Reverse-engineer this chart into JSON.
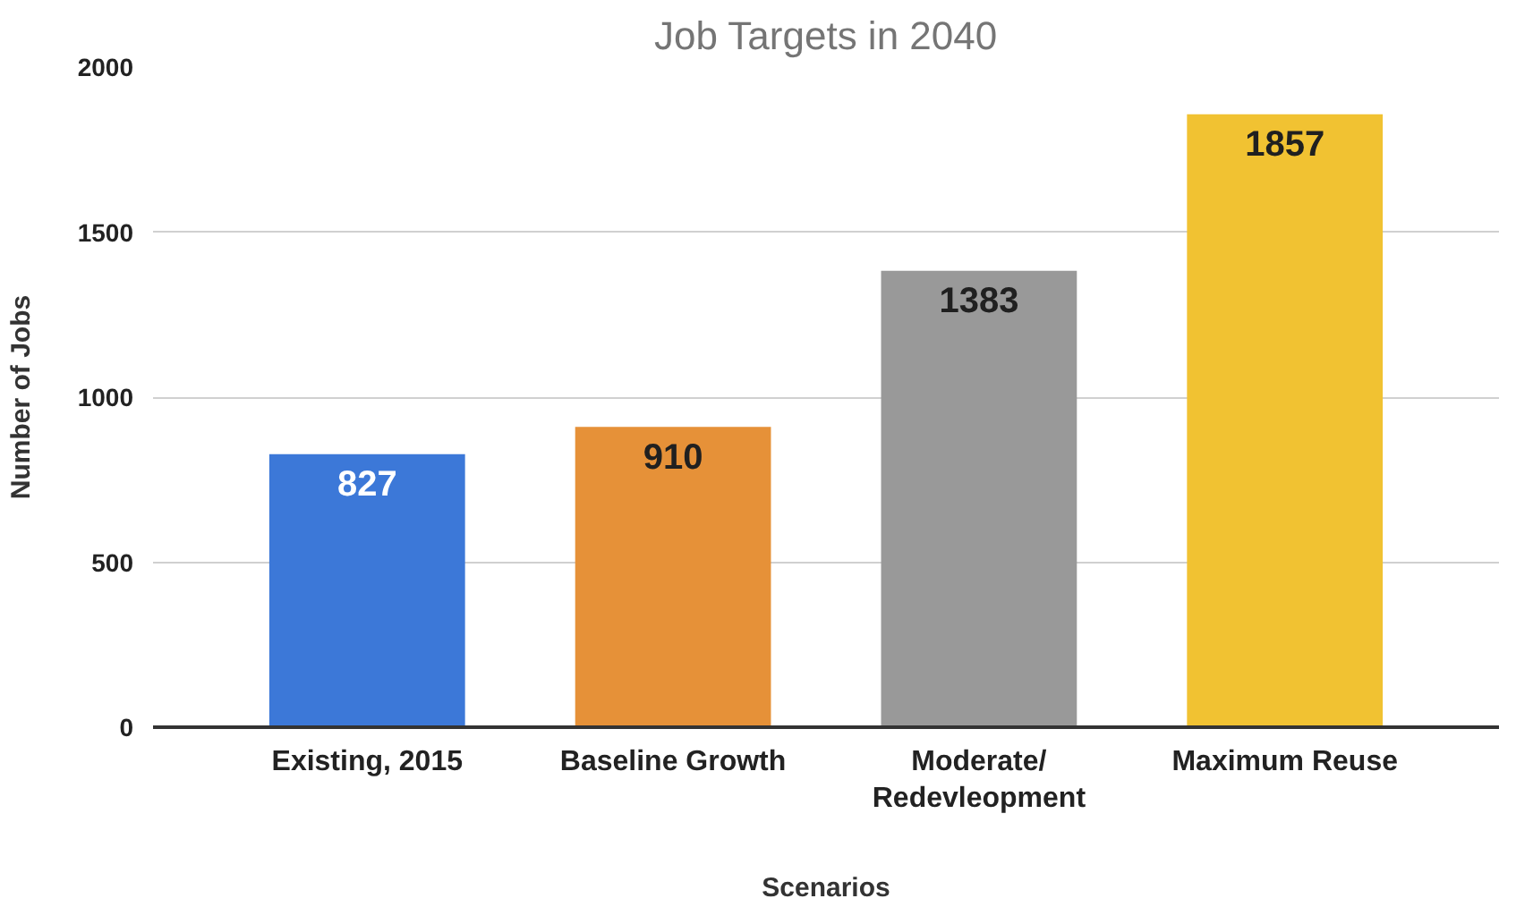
{
  "chart_data": {
    "type": "bar",
    "title": "Job Targets in 2040",
    "xlabel": "Scenarios",
    "ylabel": "Number of Jobs",
    "categories": [
      "Existing, 2015",
      "Baseline Growth",
      "Moderate/\nRedevleopment",
      "Maximum Reuse"
    ],
    "values": [
      827,
      910,
      1383,
      1857
    ],
    "colors": [
      "#3c78d8",
      "#e69138",
      "#999999",
      "#f1c232"
    ],
    "ylim": [
      0,
      2000
    ],
    "yticks": [
      0,
      500,
      1000,
      1500,
      2000
    ],
    "grid": "y",
    "data_labels": true
  }
}
